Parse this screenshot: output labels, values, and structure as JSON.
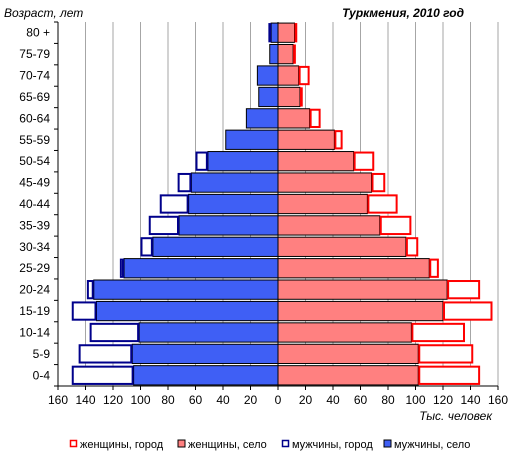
{
  "chart_data": {
    "type": "bar",
    "orientation": "horizontal",
    "subtype": "population-pyramid",
    "title": "Туркмения, 2010 год",
    "ylabel": "Возраст, лет",
    "xlabel": "Тыс. человек",
    "xlim": [
      -160,
      160
    ],
    "x_ticks": [
      -160,
      -140,
      -120,
      -100,
      -80,
      -60,
      -40,
      -20,
      0,
      20,
      40,
      60,
      80,
      100,
      120,
      140,
      160
    ],
    "x_tick_labels": [
      "160",
      "140",
      "120",
      "100",
      "80",
      "60",
      "40",
      "20",
      "0",
      "20",
      "40",
      "60",
      "80",
      "100",
      "120",
      "140",
      "160"
    ],
    "categories": [
      "0-4",
      "5-9",
      "10-14",
      "15-19",
      "20-24",
      "25-29",
      "30-34",
      "35-39",
      "40-44",
      "45-49",
      "50-54",
      "55-59",
      "60-64",
      "65-69",
      "70-74",
      "75-79",
      "80 +"
    ],
    "series": [
      {
        "name": "мужчины, село",
        "side": "left",
        "stack": "male",
        "color": "#3f5ff5",
        "style": "filled",
        "values": [
          105,
          106,
          101,
          132,
          134,
          112,
          91,
          72,
          65,
          63,
          51,
          38,
          23,
          14,
          15,
          6,
          5
        ]
      },
      {
        "name": "мужчины, город",
        "side": "left",
        "stack": "male",
        "color": "#00008b",
        "style": "outline",
        "values": [
          45,
          39,
          36,
          18,
          5,
          3,
          9,
          22,
          21,
          10,
          9,
          1,
          1,
          1,
          1,
          1,
          2
        ]
      },
      {
        "name": "женщины, село",
        "side": "right",
        "stack": "female",
        "color": "#ff8080",
        "style": "filled",
        "values": [
          102,
          102,
          97,
          120,
          123,
          110,
          93,
          74,
          65,
          68,
          55,
          41,
          23,
          16,
          15,
          11,
          12
        ]
      },
      {
        "name": "женщины, город",
        "side": "right",
        "stack": "female",
        "color": "#ff0000",
        "style": "outline",
        "values": [
          45,
          40,
          39,
          36,
          24,
          7,
          9,
          23,
          22,
          10,
          15,
          6,
          8,
          2,
          8,
          2,
          2
        ]
      }
    ],
    "grid": true,
    "legend_position": "bottom"
  }
}
